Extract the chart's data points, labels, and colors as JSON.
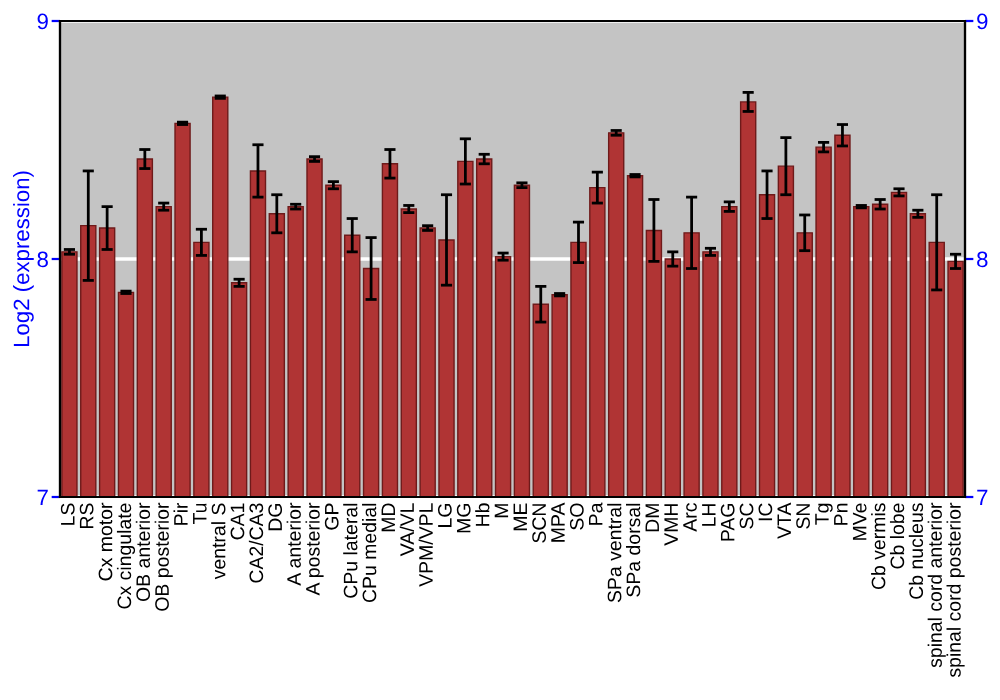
{
  "chart_data": {
    "type": "bar",
    "ylabel": "Log2 (expression)",
    "categories": [
      "LS",
      "RS",
      "Cx motor",
      "Cx cingulate",
      "OB anterior",
      "OB posterior",
      "Pir",
      "Tu",
      "ventral S",
      "CA1",
      "CA2/CA3",
      "DG",
      "A anterior",
      "A posterior",
      "GP",
      "CPu lateral",
      "CPu medial",
      "MD",
      "VA/VL",
      "VPM/VPL",
      "LG",
      "MG",
      "Hb",
      "M",
      "ME",
      "SCN",
      "MPA",
      "SO",
      "Pa",
      "SPa ventral",
      "SPa dorsal",
      "DM",
      "VMH",
      "Arc",
      "LH",
      "PAG",
      "SC",
      "IC",
      "VTA",
      "SN",
      "Tg",
      "Pn",
      "MVe",
      "Cb vermis",
      "Cb lobe",
      "Cb nucleus",
      "spinal cord anterior",
      "spinal cord posterior"
    ],
    "values": [
      8.03,
      8.14,
      8.13,
      7.86,
      8.42,
      8.22,
      8.57,
      8.07,
      8.68,
      7.9,
      8.37,
      8.19,
      8.22,
      8.42,
      8.31,
      8.1,
      7.96,
      8.4,
      8.21,
      8.13,
      8.08,
      8.41,
      8.42,
      8.01,
      8.31,
      7.81,
      7.85,
      8.07,
      8.3,
      8.53,
      8.35,
      8.12,
      8.0,
      8.11,
      8.03,
      8.22,
      8.66,
      8.27,
      8.39,
      8.11,
      8.47,
      8.52,
      8.22,
      8.23,
      8.28,
      8.19,
      8.07,
      7.99
    ],
    "errors": [
      0.01,
      0.23,
      0.09,
      0.005,
      0.04,
      0.015,
      0.005,
      0.055,
      0.005,
      0.015,
      0.11,
      0.08,
      0.01,
      0.01,
      0.015,
      0.07,
      0.13,
      0.06,
      0.015,
      0.01,
      0.19,
      0.095,
      0.02,
      0.015,
      0.01,
      0.075,
      0.005,
      0.085,
      0.065,
      0.01,
      0.005,
      0.13,
      0.03,
      0.15,
      0.015,
      0.02,
      0.04,
      0.1,
      0.12,
      0.075,
      0.02,
      0.045,
      0.005,
      0.02,
      0.015,
      0.015,
      0.2,
      0.03
    ],
    "color": "#b03434",
    "ylim": [
      7,
      9
    ],
    "yticks": [
      7,
      8,
      9
    ],
    "y2lim": [
      7,
      9
    ],
    "y2ticks": [
      7,
      8,
      9
    ],
    "grid": "y"
  }
}
